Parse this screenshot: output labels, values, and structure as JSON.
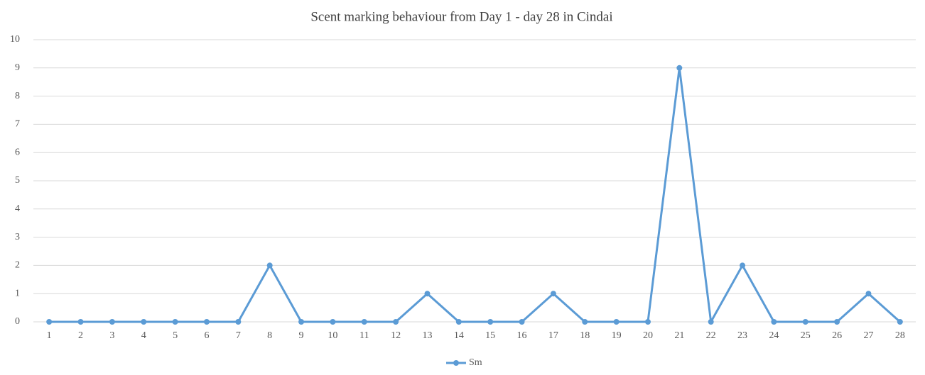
{
  "chart_data": {
    "type": "line",
    "title": "Scent marking behaviour from Day 1 - day 28 in Cindai",
    "categories": [
      "1",
      "2",
      "3",
      "4",
      "5",
      "6",
      "7",
      "8",
      "9",
      "10",
      "11",
      "12",
      "13",
      "14",
      "15",
      "16",
      "17",
      "18",
      "19",
      "20",
      "21",
      "22",
      "23",
      "24",
      "25",
      "26",
      "27",
      "28"
    ],
    "series": [
      {
        "name": "Sm",
        "color": "#5b9bd5",
        "values": [
          0,
          0,
          0,
          0,
          0,
          0,
          0,
          2,
          0,
          0,
          0,
          0,
          1,
          0,
          0,
          0,
          1,
          0,
          0,
          0,
          9,
          0,
          2,
          0,
          0,
          0,
          1,
          0
        ]
      }
    ],
    "ylim": [
      0,
      10
    ],
    "yticks": [
      0,
      1,
      2,
      3,
      4,
      5,
      6,
      7,
      8,
      9,
      10
    ],
    "grid": true,
    "legend": "bottom"
  }
}
